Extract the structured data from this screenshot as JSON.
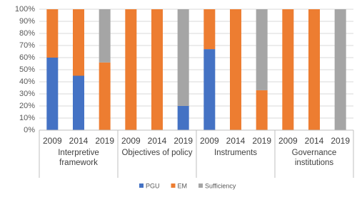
{
  "chart_data": {
    "type": "stacked_bar",
    "groups": [
      "Interpretive framework",
      "Objectives of policy",
      "Instruments",
      "Governance institutions"
    ],
    "categories": [
      "2009",
      "2014",
      "2019",
      "2009",
      "2014",
      "2019",
      "2009",
      "2014",
      "2019",
      "2009",
      "2014",
      "2019"
    ],
    "series": [
      {
        "name": "PGU",
        "color": "#4472c4",
        "values": [
          60,
          45,
          0,
          0,
          0,
          20,
          67,
          0,
          0,
          0,
          0,
          0
        ]
      },
      {
        "name": "EM",
        "color": "#ed7d31",
        "values": [
          40,
          55,
          56,
          100,
          100,
          0,
          33,
          100,
          33,
          100,
          100,
          0
        ]
      },
      {
        "name": "Sufficiency",
        "color": "#a5a5a5",
        "values": [
          0,
          0,
          44,
          0,
          0,
          80,
          0,
          0,
          67,
          0,
          0,
          100
        ]
      }
    ],
    "ylim": [
      0,
      100
    ],
    "yticks": [
      {
        "value": 0,
        "label": "0%"
      },
      {
        "value": 10,
        "label": "10%"
      },
      {
        "value": 20,
        "label": "20%"
      },
      {
        "value": 30,
        "label": "30%"
      },
      {
        "value": 40,
        "label": "40%"
      },
      {
        "value": 50,
        "label": "50%"
      },
      {
        "value": 60,
        "label": "60%"
      },
      {
        "value": 70,
        "label": "70%"
      },
      {
        "value": 80,
        "label": "80%"
      },
      {
        "value": 90,
        "label": "90%"
      },
      {
        "value": 100,
        "label": "100%"
      }
    ],
    "grid": true,
    "legend": "bottom"
  }
}
